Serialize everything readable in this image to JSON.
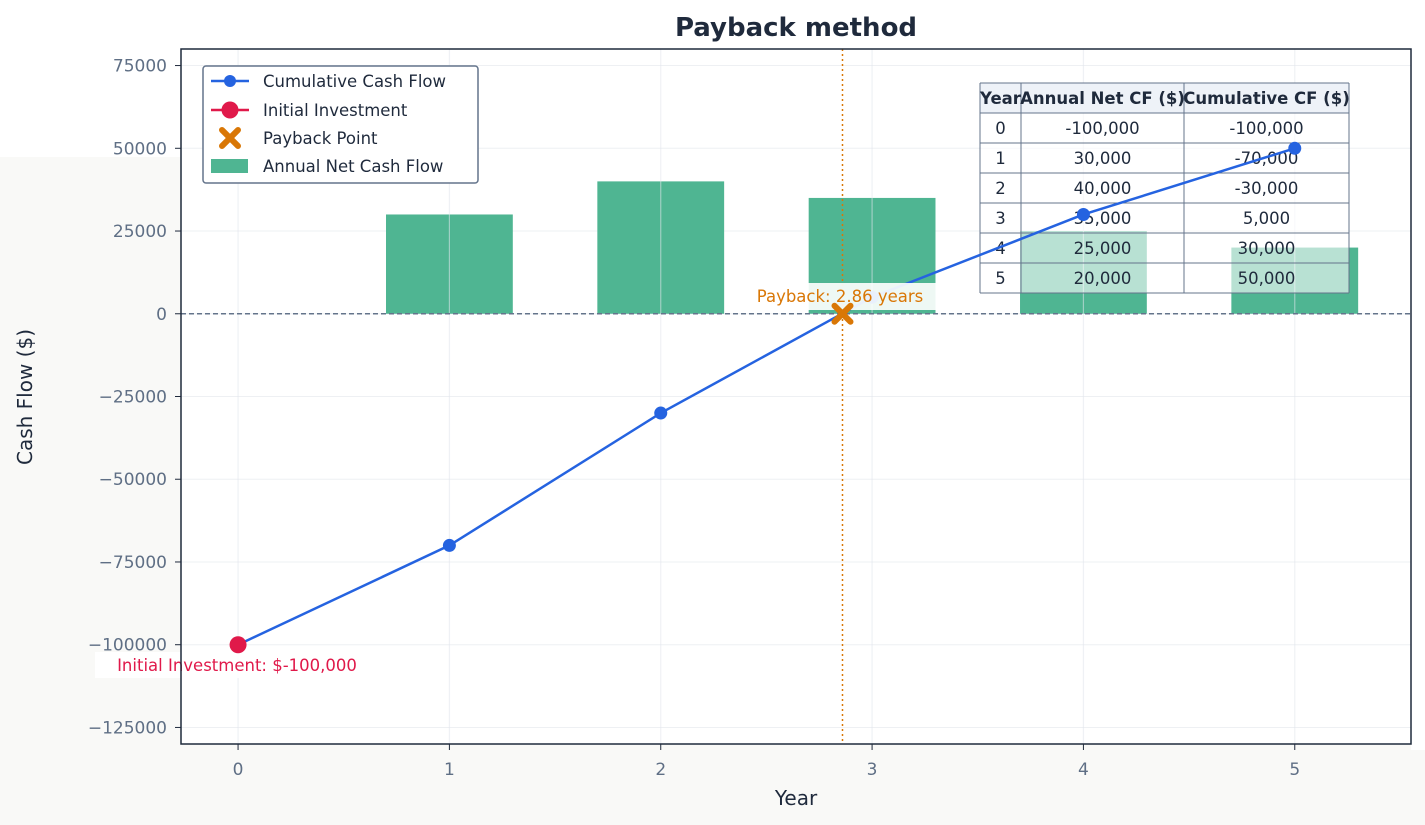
{
  "colors": {
    "cumulative": "#2563e0",
    "investment": "#e0194a",
    "payback": "#d97706",
    "bars": "#4fb592",
    "text": "#1f2a3c",
    "tick": "#5f6f85"
  },
  "chart_data": {
    "type": "bar",
    "title": "Payback method",
    "xlabel": "Year",
    "ylabel": "Cash Flow ($)",
    "xlim": [
      -0.27,
      5.55
    ],
    "ylim": [
      -130000,
      80000
    ],
    "xticks": [
      0,
      1,
      2,
      3,
      4,
      5
    ],
    "yticks": [
      75000,
      50000,
      25000,
      0,
      -25000,
      -50000,
      -75000,
      -100000,
      -125000
    ],
    "ytick_labels": [
      "75000",
      "50000",
      "25000",
      "0",
      "−25000",
      "−50000",
      "−75000",
      "−100000",
      "−125000"
    ],
    "grid": true,
    "legend_position": "upper-left",
    "series": [
      {
        "name": "Cumulative Cash Flow",
        "type": "line",
        "x": [
          0,
          1,
          2,
          3,
          4,
          5
        ],
        "values": [
          -100000,
          -70000,
          -30000,
          5000,
          30000,
          50000
        ]
      },
      {
        "name": "Initial Investment",
        "type": "point",
        "x": [
          0
        ],
        "values": [
          -100000
        ]
      },
      {
        "name": "Payback Point",
        "type": "point",
        "x": [
          2.86
        ],
        "values": [
          0
        ]
      },
      {
        "name": "Annual Net Cash Flow",
        "type": "bar",
        "x": [
          1,
          2,
          3,
          4,
          5
        ],
        "values": [
          30000,
          40000,
          35000,
          25000,
          20000
        ]
      }
    ],
    "payback_year": 2.86,
    "annotations": {
      "payback": "Payback: 2.86 years",
      "investment": "Initial Investment: $-100,000"
    },
    "table": {
      "headers": [
        "Year",
        "Annual Net CF ($)",
        "Cumulative CF ($)"
      ],
      "rows": [
        [
          "0",
          "-100,000",
          "-100,000"
        ],
        [
          "1",
          "30,000",
          "-70,000"
        ],
        [
          "2",
          "40,000",
          "-30,000"
        ],
        [
          "3",
          "35,000",
          "5,000"
        ],
        [
          "4",
          "25,000",
          "30,000"
        ],
        [
          "5",
          "20,000",
          "50,000"
        ]
      ]
    }
  }
}
